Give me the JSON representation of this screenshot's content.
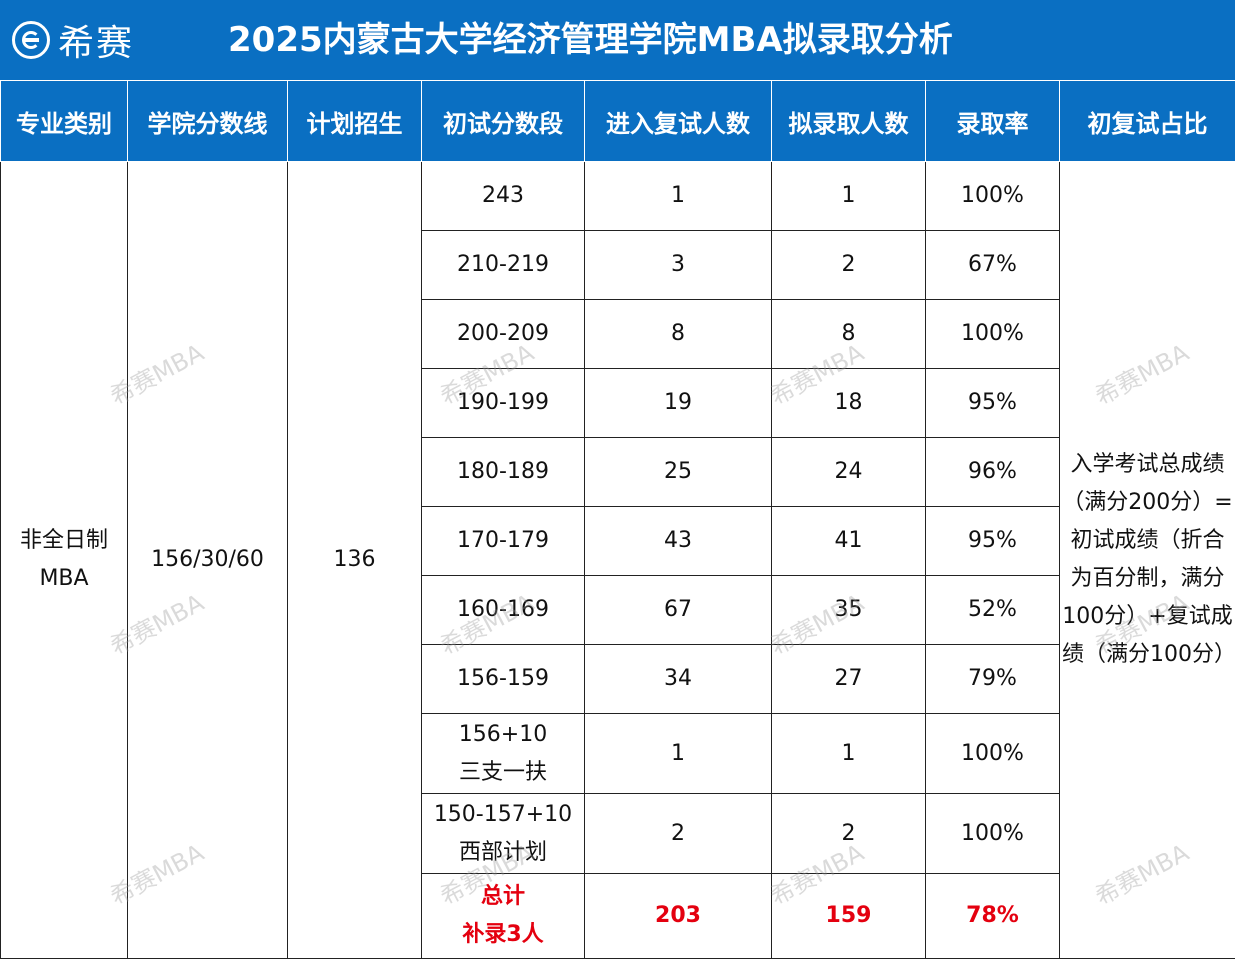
{
  "header": {
    "logo_text": "希赛",
    "title": "2025内蒙古大学经济管理学院MBA拟录取分析"
  },
  "table": {
    "columns": [
      "专业类别",
      "学院分数线",
      "计划招生",
      "初试分数段",
      "进入复试人数",
      "拟录取人数",
      "录取率",
      "初复试占比"
    ],
    "major": "非全日制MBA",
    "cutoff": "156/30/60",
    "plan": "136",
    "note": "入学考试总成绩（满分200分）=初试成绩（折合为百分制，满分100分）+复试成绩（满分100分）",
    "rows": [
      {
        "range": "243",
        "retest": "1",
        "admitted": "1",
        "rate": "100%"
      },
      {
        "range": "210-219",
        "retest": "3",
        "admitted": "2",
        "rate": "67%"
      },
      {
        "range": "200-209",
        "retest": "8",
        "admitted": "8",
        "rate": "100%"
      },
      {
        "range": "190-199",
        "retest": "19",
        "admitted": "18",
        "rate": "95%"
      },
      {
        "range": "180-189",
        "retest": "25",
        "admitted": "24",
        "rate": "96%"
      },
      {
        "range": "170-179",
        "retest": "43",
        "admitted": "41",
        "rate": "95%"
      },
      {
        "range": "160-169",
        "retest": "67",
        "admitted": "35",
        "rate": "52%"
      },
      {
        "range": "156-159",
        "retest": "34",
        "admitted": "27",
        "rate": "79%"
      },
      {
        "range": "156+10",
        "range2": "三支一扶",
        "retest": "1",
        "admitted": "1",
        "rate": "100%"
      },
      {
        "range": "150-157+10",
        "range2": "西部计划",
        "retest": "2",
        "admitted": "2",
        "rate": "100%"
      }
    ],
    "total": {
      "label": "总计",
      "label2": "补录3人",
      "retest": "203",
      "admitted": "159",
      "rate": "78%"
    }
  },
  "watermark": "希赛MBA",
  "colors": {
    "header_blue": "#0a6fc2",
    "total_red": "#e4000f"
  }
}
